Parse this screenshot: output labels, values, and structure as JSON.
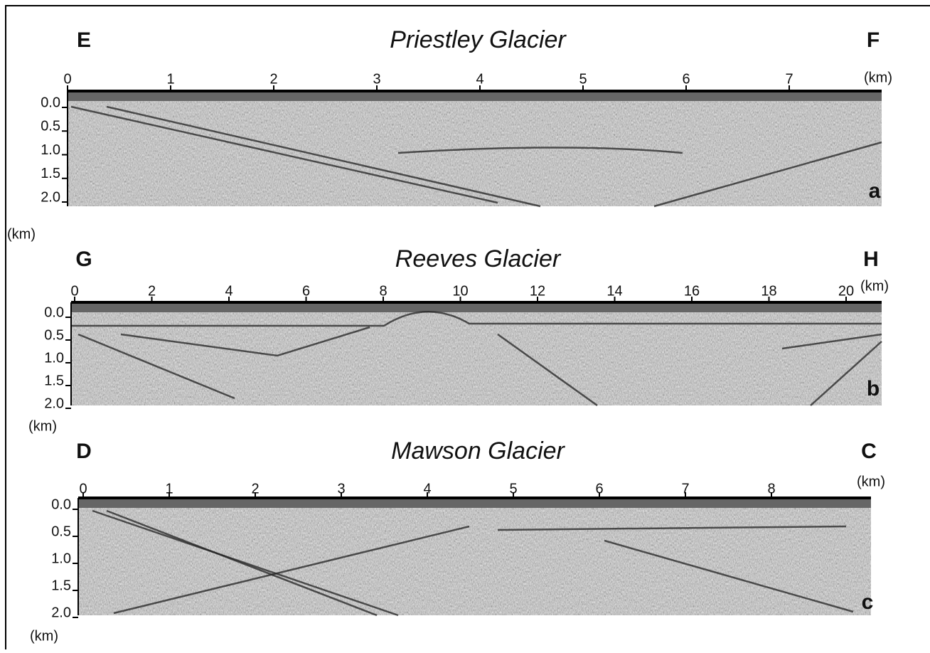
{
  "panels": [
    {
      "title": "Priestley Glacier",
      "left": "E",
      "right": "F",
      "letter": "a",
      "x_ticks": [
        "0",
        "1",
        "2",
        "3",
        "4",
        "5",
        "6",
        "7"
      ],
      "x_unit": "(km)",
      "y_ticks": [
        "0.0",
        "0.5",
        "1.0",
        "1.5",
        "2.0"
      ],
      "y_unit": "(km)"
    },
    {
      "title": "Reeves Glacier",
      "left": "G",
      "right": "H",
      "letter": "b",
      "x_ticks": [
        "0",
        "2",
        "4",
        "6",
        "8",
        "10",
        "12",
        "14",
        "16",
        "18",
        "20"
      ],
      "x_unit": "(km)",
      "y_ticks": [
        "0.0",
        "0.5",
        "1.0",
        "1.5",
        "2.0"
      ],
      "y_unit": "(km)"
    },
    {
      "title": "Mawson Glacier",
      "left": "D",
      "right": "C",
      "letter": "c",
      "x_ticks": [
        "0",
        "1",
        "2",
        "3",
        "4",
        "5",
        "6",
        "7",
        "8"
      ],
      "x_unit": "(km)",
      "y_ticks": [
        "0.0",
        "0.5",
        "1.0",
        "1.5",
        "2.0"
      ],
      "y_unit": "(km)"
    }
  ]
}
